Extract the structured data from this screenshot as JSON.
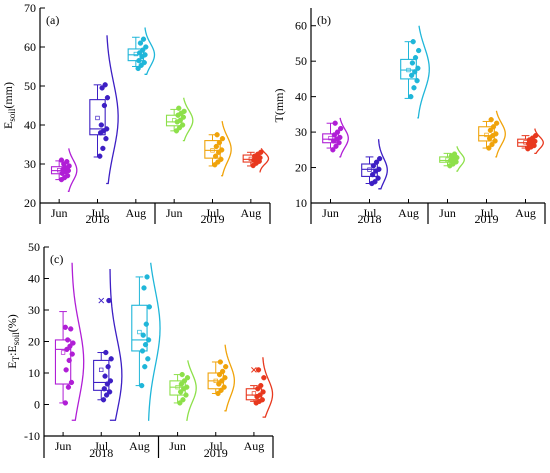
{
  "chart_data": [
    {
      "type": "box",
      "panel_tag": "(a)",
      "ylabel": "E_soil(mm)",
      "ylabel_main": "E",
      "ylabel_sub": "soil",
      "ylabel_rest": "(mm)",
      "ylim": [
        20,
        70
      ],
      "yticks": [
        20,
        30,
        40,
        50,
        60,
        70
      ],
      "categories": [
        "Jun",
        "Jul",
        "Aug",
        "Jun",
        "Jul",
        "Aug"
      ],
      "years": [
        "2018",
        "2019"
      ],
      "boxes": [
        {
          "color": "#b01ed6",
          "min": 26,
          "q1": 27.5,
          "median": 28.3,
          "q3": 29.3,
          "max": 30.8,
          "mean": 28.4,
          "points": [
            26,
            26.5,
            27,
            27.6,
            28,
            28.3,
            28.6,
            29,
            29.5,
            30,
            30.6,
            31
          ],
          "dens_lo": 23,
          "dens_hi": 34,
          "dens_w": 9
        },
        {
          "color": "#3d1fc4",
          "min": 31.8,
          "q1": 37.5,
          "median": 39,
          "q3": 46.5,
          "max": 50.3,
          "mean": 41.8,
          "points": [
            32,
            34,
            36.5,
            38,
            38.5,
            39,
            40,
            45,
            47,
            49.5,
            50.3
          ],
          "dens_lo": 25,
          "dens_hi": 63,
          "dens_w": 12
        },
        {
          "color": "#1fb6d9",
          "min": 55,
          "q1": 56.5,
          "median": 58,
          "q3": 59.5,
          "max": 62.5,
          "mean": 58.2,
          "points": [
            54.5,
            55.3,
            56,
            56.5,
            57.5,
            58,
            58.5,
            59.2,
            60,
            61,
            62
          ],
          "dens_lo": 53,
          "dens_hi": 65,
          "dens_w": 10
        },
        {
          "color": "#8de04a",
          "min": 38.5,
          "q1": 39.8,
          "median": 40.8,
          "q3": 42.5,
          "max": 44,
          "mean": 41.2,
          "points": [
            38.5,
            39.3,
            40,
            40.8,
            41.2,
            42,
            42.5,
            43,
            43.5,
            44.3
          ],
          "dens_lo": 36,
          "dens_hi": 47,
          "dens_w": 10
        },
        {
          "color": "#f0a30a",
          "min": 29.5,
          "q1": 31.5,
          "median": 33.5,
          "q3": 36,
          "max": 37.5,
          "mean": 33.5,
          "points": [
            29.8,
            30.5,
            31.2,
            32,
            33,
            33.6,
            34.5,
            35.5,
            36.5,
            37.5
          ],
          "dens_lo": 27,
          "dens_hi": 41,
          "dens_w": 10
        },
        {
          "color": "#e8381e",
          "min": 29.5,
          "q1": 30.5,
          "median": 31.2,
          "q3": 32.3,
          "max": 33,
          "mean": 31.3,
          "points": [
            29.6,
            30.2,
            30.7,
            31,
            31.3,
            31.6,
            32,
            32.5,
            33
          ],
          "dens_lo": 28,
          "dens_hi": 34,
          "dens_w": 9
        }
      ]
    },
    {
      "type": "box",
      "panel_tag": "(b)",
      "ylabel": "T(mm)",
      "ylim": [
        10,
        65
      ],
      "yticks": [
        10,
        20,
        30,
        40,
        50,
        60
      ],
      "categories": [
        "Jun",
        "Jul",
        "Aug",
        "Jun",
        "Jul",
        "Aug"
      ],
      "years": [
        "2018",
        "2019"
      ],
      "boxes": [
        {
          "color": "#b01ed6",
          "min": 25.5,
          "q1": 27,
          "median": 28,
          "q3": 29.5,
          "max": 32.5,
          "mean": 28.3,
          "points": [
            25,
            26,
            27,
            27.5,
            28,
            28.5,
            29.2,
            30,
            31,
            32.5
          ],
          "dens_lo": 23,
          "dens_hi": 34,
          "dens_w": 9
        },
        {
          "color": "#3d1fc4",
          "min": 15.5,
          "q1": 17.5,
          "median": 19.5,
          "q3": 21,
          "max": 23,
          "mean": 19.4,
          "points": [
            15.5,
            16,
            17,
            18,
            19,
            19.5,
            20.5,
            21.5,
            22.5
          ],
          "dens_lo": 14,
          "dens_hi": 28,
          "dens_w": 9
        },
        {
          "color": "#1fb6d9",
          "min": 39.5,
          "q1": 45,
          "median": 47.5,
          "q3": 50.5,
          "max": 55.5,
          "mean": 47.5,
          "points": [
            40,
            42.5,
            44.5,
            46,
            47,
            48,
            49.5,
            51,
            53,
            55.5
          ],
          "dens_lo": 34,
          "dens_hi": 60,
          "dens_w": 12
        },
        {
          "color": "#8de04a",
          "min": 20.5,
          "q1": 21.5,
          "median": 22,
          "q3": 23,
          "max": 24,
          "mean": 22.2,
          "points": [
            20.5,
            21,
            21.6,
            22,
            22.4,
            22.8,
            23.3,
            23.8
          ],
          "dens_lo": 19,
          "dens_hi": 26,
          "dens_w": 8
        },
        {
          "color": "#f0a30a",
          "min": 25.5,
          "q1": 27.5,
          "median": 29,
          "q3": 31.5,
          "max": 33,
          "mean": 29.2,
          "points": [
            25.5,
            26.5,
            27.5,
            28.2,
            29,
            29.5,
            30.5,
            31.5,
            32.5,
            33.5
          ],
          "dens_lo": 23,
          "dens_hi": 36,
          "dens_w": 10
        },
        {
          "color": "#e8381e",
          "min": 25.5,
          "q1": 26,
          "median": 27,
          "q3": 28,
          "max": 29,
          "mean": 27.1,
          "points": [
            25.3,
            25.8,
            26.2,
            26.7,
            27,
            27.4,
            27.8,
            28.3,
            29
          ],
          "dens_lo": 24,
          "dens_hi": 31,
          "dens_w": 9
        }
      ]
    },
    {
      "type": "box",
      "panel_tag": "(c)",
      "ylabel": "E_T:E_soil(%)",
      "ylabel_main": "E",
      "ylabel_sub": "T",
      "ylabel_mid": ":E",
      "ylabel_sub2": "soil",
      "ylabel_rest": "(%)",
      "ylim": [
        -10,
        50
      ],
      "yticks": [
        -10,
        0,
        10,
        20,
        30,
        40,
        50
      ],
      "categories": [
        "Jun",
        "Jul",
        "Aug",
        "Jun",
        "Jul",
        "Aug"
      ],
      "years": [
        "2018",
        "2019"
      ],
      "boxes": [
        {
          "color": "#b01ed6",
          "min": 0.5,
          "q1": 6.5,
          "median": 17.5,
          "q3": 20.5,
          "max": 29.5,
          "mean": 16.5,
          "points": [
            0.5,
            5.5,
            7,
            11,
            14,
            16,
            17.5,
            18.5,
            19.5,
            20.5,
            24,
            24.5
          ],
          "dens_lo": -5,
          "dens_hi": 45,
          "dens_w": 12
        },
        {
          "color": "#3d1fc4",
          "min": 1.5,
          "q1": 4.5,
          "median": 7,
          "q3": 14,
          "max": 16.5,
          "mean": 11,
          "outlier": 33,
          "points": [
            1.5,
            3,
            4,
            5,
            6.5,
            7.5,
            9,
            12,
            14.5,
            16.5,
            33
          ],
          "dens_lo": -5,
          "dens_hi": 43,
          "dens_w": 12
        },
        {
          "color": "#1fb6d9",
          "min": 6,
          "q1": 17,
          "median": 20.5,
          "q3": 31.5,
          "max": 40.5,
          "mean": 23,
          "points": [
            6,
            12,
            14.5,
            17,
            19,
            20.5,
            22,
            25.5,
            31,
            37,
            40.5
          ],
          "dens_lo": -5,
          "dens_hi": 45,
          "dens_w": 12
        },
        {
          "color": "#8de04a",
          "min": 0.5,
          "q1": 3,
          "median": 5.5,
          "q3": 7.5,
          "max": 9.5,
          "mean": 5.5,
          "points": [
            0.5,
            1.5,
            3,
            4,
            5,
            5.5,
            6.5,
            7.5,
            8.5,
            9.5
          ],
          "dens_lo": -5,
          "dens_hi": 14,
          "dens_w": 10
        },
        {
          "color": "#f0a30a",
          "min": 3.5,
          "q1": 5,
          "median": 7.5,
          "q3": 10,
          "max": 13.5,
          "mean": 7.5,
          "points": [
            3.5,
            4.5,
            5.5,
            6.5,
            7.5,
            8.5,
            9.5,
            10.5,
            12,
            13.5
          ],
          "dens_lo": -2,
          "dens_hi": 19,
          "dens_w": 10
        },
        {
          "color": "#e8381e",
          "min": 1,
          "q1": 1.5,
          "median": 3,
          "q3": 5,
          "max": 6,
          "mean": 3.5,
          "outlier": 11,
          "points": [
            0.5,
            1,
            1.5,
            2.5,
            3,
            4,
            5,
            6,
            8.5,
            11
          ],
          "dens_lo": -4,
          "dens_hi": 15,
          "dens_w": 10
        }
      ]
    }
  ]
}
